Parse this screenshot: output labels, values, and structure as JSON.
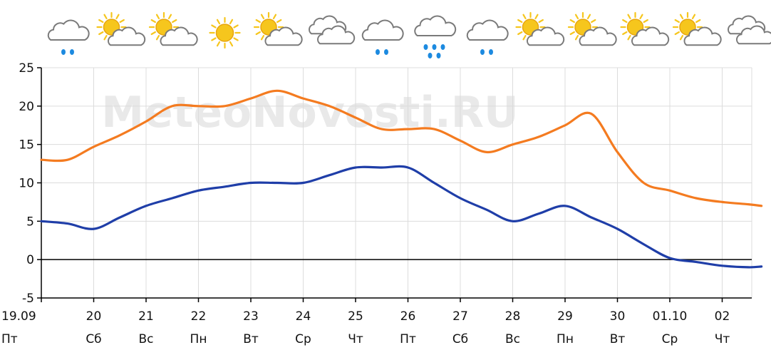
{
  "watermark": "MeteoNovosti.RU",
  "chart_data": {
    "type": "line",
    "title": "",
    "xlabel": "",
    "ylabel": "",
    "ylim": [
      -5,
      25
    ],
    "yticks": [
      -5,
      0,
      5,
      10,
      15,
      20,
      25
    ],
    "grid": true,
    "legend": "none",
    "x_range": [
      0,
      13.75
    ],
    "days": [
      {
        "date": "19.09",
        "weekday": "Пт",
        "icon": "cloud-rain-icon"
      },
      {
        "date": "20",
        "weekday": "Сб",
        "icon": "sun-cloud-icon"
      },
      {
        "date": "21",
        "weekday": "Вс",
        "icon": "sun-cloud-icon"
      },
      {
        "date": "22",
        "weekday": "Пн",
        "icon": "sun-icon"
      },
      {
        "date": "23",
        "weekday": "Вт",
        "icon": "sun-cloud-icon"
      },
      {
        "date": "24",
        "weekday": "Ср",
        "icon": "cloud-icon"
      },
      {
        "date": "25",
        "weekday": "Чт",
        "icon": "cloud-rain-icon"
      },
      {
        "date": "26",
        "weekday": "Пт",
        "icon": "cloud-heavy-rain-icon"
      },
      {
        "date": "27",
        "weekday": "Сб",
        "icon": "cloud-rain-icon"
      },
      {
        "date": "28",
        "weekday": "Вс",
        "icon": "sun-cloud-icon"
      },
      {
        "date": "29",
        "weekday": "Пн",
        "icon": "sun-cloud-icon"
      },
      {
        "date": "30",
        "weekday": "Вт",
        "icon": "sun-cloud-icon"
      },
      {
        "date": "01.10",
        "weekday": "Ср",
        "icon": "sun-cloud-icon"
      },
      {
        "date": "02",
        "weekday": "Чт",
        "icon": "cloud-icon"
      }
    ],
    "series": [
      {
        "color": "#f47b20",
        "x": [
          0,
          0.5,
          1,
          1.5,
          2,
          2.5,
          3,
          3.5,
          4,
          4.5,
          5,
          5.5,
          6,
          6.5,
          7,
          7.5,
          8,
          8.5,
          9,
          9.5,
          10,
          10.5,
          11,
          11.5,
          12,
          12.5,
          13,
          13.5,
          13.75
        ],
        "values": [
          13,
          13,
          14.7,
          16.2,
          18,
          20,
          20,
          20,
          21,
          22,
          21,
          20,
          18.5,
          17,
          17,
          17,
          15.5,
          14,
          15,
          16,
          17.5,
          19,
          14,
          10,
          9,
          8,
          7.5,
          7.2,
          7
        ]
      },
      {
        "color": "#1f3ea8",
        "x": [
          0,
          0.5,
          1,
          1.5,
          2,
          2.5,
          3,
          3.5,
          4,
          4.5,
          5,
          5.5,
          6,
          6.5,
          7,
          7.5,
          8,
          8.5,
          9,
          9.5,
          10,
          10.5,
          11,
          11.5,
          12,
          12.5,
          13,
          13.5,
          13.75
        ],
        "values": [
          5,
          4.7,
          4,
          5.5,
          7,
          8,
          9,
          9.5,
          10,
          10,
          10,
          11,
          12,
          12,
          12,
          10,
          8,
          6.5,
          5,
          6,
          7,
          5.5,
          4,
          2,
          0.2,
          -0.3,
          -0.8,
          -1,
          -0.9
        ]
      }
    ]
  },
  "colors": {
    "sun": "#f6c61d",
    "sun_core": "#e8a611",
    "cloud": "#ffffff",
    "cloud_stroke": "#7a7a7a",
    "rain": "#1c8ae0",
    "grid": "#dcdcdc",
    "axis": "#000000"
  }
}
